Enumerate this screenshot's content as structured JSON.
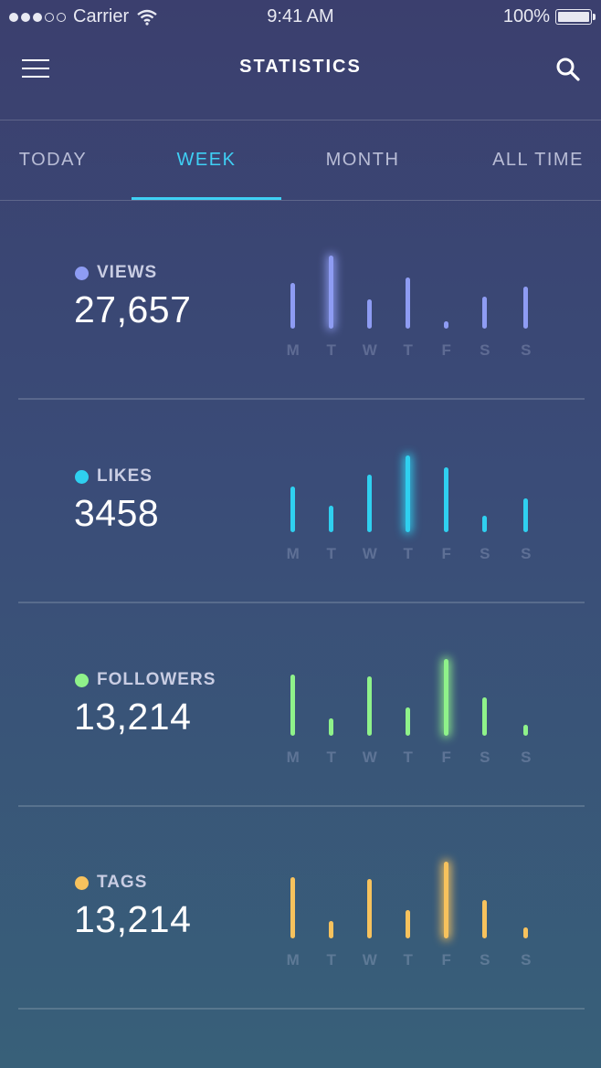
{
  "status_bar": {
    "carrier": "Carrier",
    "time": "9:41 AM",
    "battery": "100%"
  },
  "header": {
    "title": "STATISTICS",
    "menu_icon": "hamburger-menu-icon",
    "search_icon": "search-icon"
  },
  "tabs": [
    {
      "label": "TODAY",
      "active": false
    },
    {
      "label": "WEEK",
      "active": true
    },
    {
      "label": "MONTH",
      "active": false
    },
    {
      "label": "ALL TIME",
      "active": false
    }
  ],
  "days": [
    "M",
    "T",
    "W",
    "T",
    "F",
    "S",
    "S"
  ],
  "stats": [
    {
      "label": "VIEWS",
      "value": "27,657",
      "color": "#8e9cf3",
      "levels": [
        0.6,
        0.95,
        0.38,
        0.67,
        0.1,
        0.42,
        0.55
      ],
      "highlight": 1
    },
    {
      "label": "LIKES",
      "value": "3458",
      "color": "#2fd0f0",
      "levels": [
        0.6,
        0.35,
        0.75,
        1.0,
        0.84,
        0.22,
        0.44
      ],
      "highlight": 3
    },
    {
      "label": "FOLLOWERS",
      "value": "13,214",
      "color": "#8ff28a",
      "levels": [
        0.8,
        0.23,
        0.77,
        0.37,
        1.0,
        0.5,
        0.14
      ],
      "highlight": 4
    },
    {
      "label": "TAGS",
      "value": "13,214",
      "color": "#f7c25d",
      "levels": [
        0.8,
        0.23,
        0.77,
        0.37,
        1.0,
        0.5,
        0.14
      ],
      "highlight": 4
    }
  ]
}
